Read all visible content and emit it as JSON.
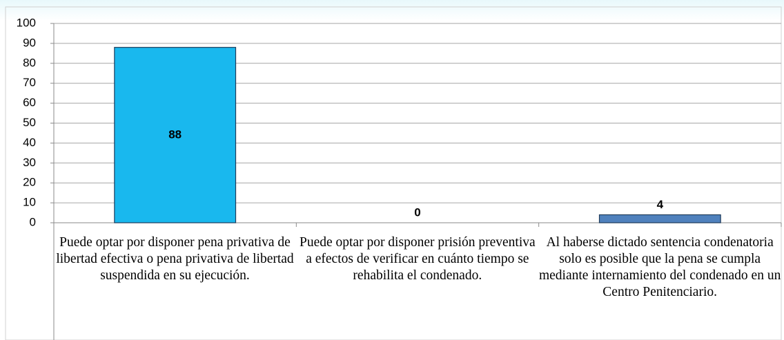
{
  "chart_data": {
    "type": "bar",
    "categories": [
      "Puede optar por disponer pena privativa de libertad efectiva o pena privativa de libertad suspendida en su ejecución.",
      "Puede optar por disponer prisión preventiva a efectos de verificar en cuánto tiempo se rehabilita el condenado.",
      "Al haberse dictado sentencia condenatoria solo es posible que la pena se cumpla mediante internamiento del condenado en un Centro Penitenciario."
    ],
    "values": [
      88,
      0,
      4
    ],
    "colors": [
      "#19b8ee",
      "#4f81bd",
      "#4f81bd"
    ],
    "ylim": [
      0,
      100
    ],
    "yticks": [
      0,
      10,
      20,
      30,
      40,
      50,
      60,
      70,
      80,
      90,
      100
    ],
    "grid": true
  }
}
